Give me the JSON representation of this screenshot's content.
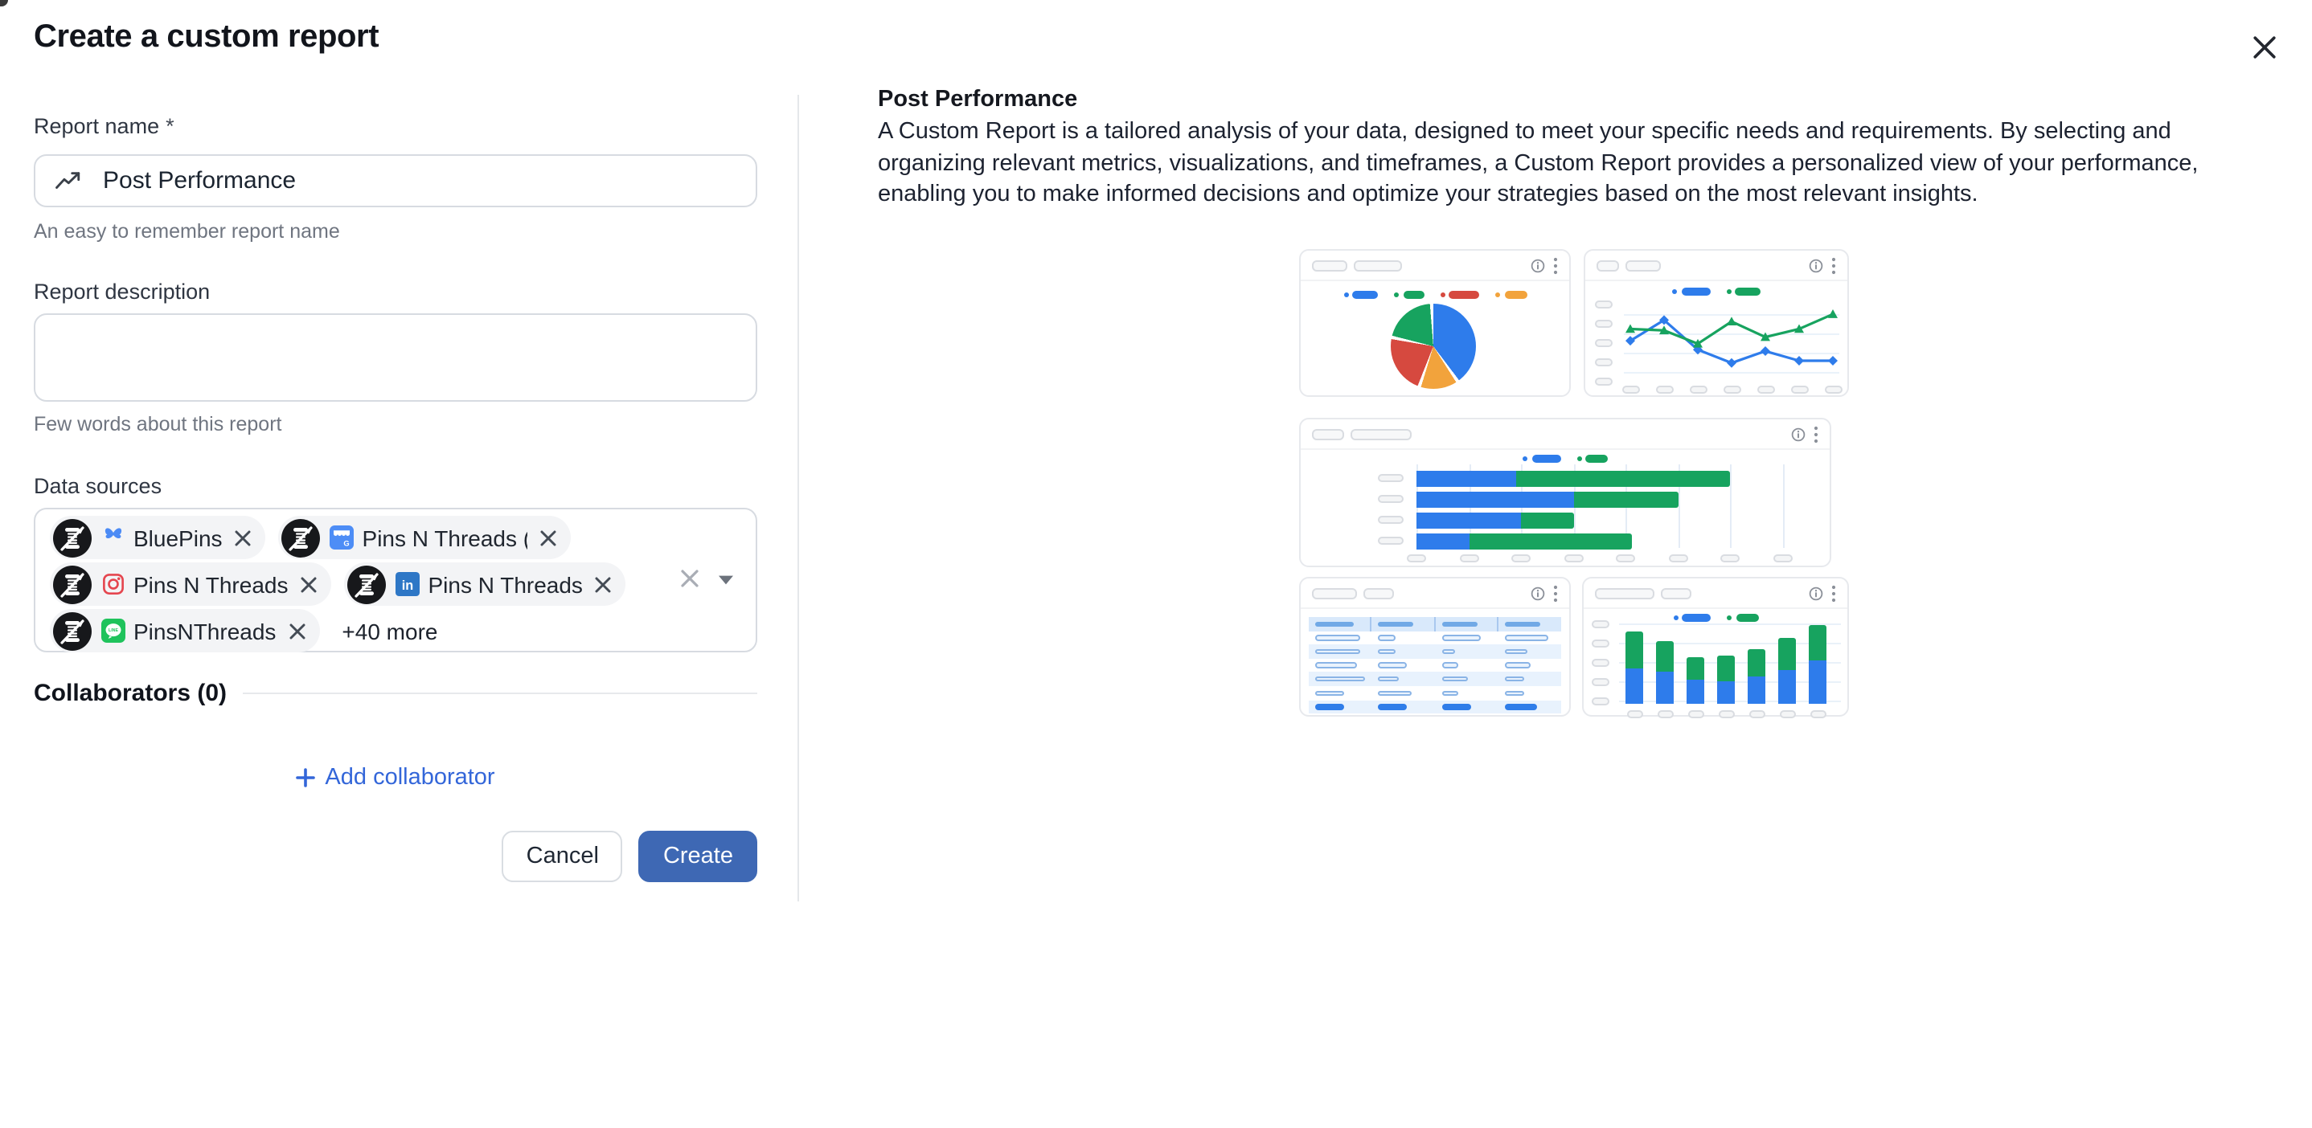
{
  "modal": {
    "title": "Create a custom report"
  },
  "form": {
    "report_name": {
      "label": "Report name",
      "required_mark": "*",
      "value": "Post Performance",
      "helper": "An easy to remember report name"
    },
    "report_description": {
      "label": "Report description",
      "value": "",
      "helper": "Few words about this report"
    },
    "data_sources": {
      "label": "Data sources",
      "tags": [
        {
          "name": "BluePins",
          "network": "bluesky"
        },
        {
          "name": "Pins N Threads (Sa",
          "network": "google-business"
        },
        {
          "name": "Pins N Threads",
          "network": "instagram"
        },
        {
          "name": "Pins N Threads",
          "network": "linkedin"
        },
        {
          "name": "PinsNThreads",
          "network": "line"
        }
      ],
      "more_label": "+40 more"
    },
    "collaborators": {
      "label": "Collaborators (0)",
      "add_label": "Add collaborator"
    },
    "buttons": {
      "cancel": "Cancel",
      "create": "Create"
    }
  },
  "preview": {
    "heading": "Post Performance",
    "description": "A Custom Report is a tailored analysis of your data, designed to meet your specific needs and requirements. By selecting and organizing relevant metrics, visualizations, and timeframes, a Custom Report provides a personalized view of your performance, enabling you to make informed decisions and optimize your strategies based on the most relevant insights."
  },
  "palette": {
    "accent_blue": "#3e68b4",
    "link_blue": "#3366d9",
    "chart_blue": "#2e7ceb",
    "chart_green": "#17a35f",
    "chart_red": "#d6493f",
    "chart_orange": "#f2a33c",
    "bluesky_blue": "#4c8bf5",
    "instagram_red": "#e5464f",
    "linkedin_blue": "#2e77c6",
    "line_green": "#1fc35c",
    "google_blue": "#4d8df6",
    "table_header_bg": "#d9e9fb",
    "table_alt_bg": "#e8f2fd",
    "table_solid_pill": "#2f7de9"
  },
  "chart_data": [
    {
      "type": "pie",
      "note": "thumbnail illustration; axis/labels are skeleton placeholders",
      "legend": [
        {
          "color": "#2e7ceb",
          "w": 16
        },
        {
          "color": "#17a35f",
          "w": 13
        },
        {
          "color": "#d6493f",
          "w": 19
        },
        {
          "color": "#f2a33c",
          "w": 14
        }
      ],
      "slices": [
        {
          "color": "#2e7ceb",
          "pct": 41
        },
        {
          "color": "#f2a33c",
          "pct": 15
        },
        {
          "color": "#d6493f",
          "pct": 23
        },
        {
          "color": "#17a35f",
          "pct": 21
        }
      ]
    },
    {
      "type": "line",
      "x_points": 7,
      "y_ticks": 5,
      "ylim": [
        0,
        100
      ],
      "legend": [
        {
          "color": "#2e7ceb",
          "w": 18
        },
        {
          "color": "#17a35f",
          "w": 16
        }
      ],
      "series": [
        {
          "name": "series-blue",
          "color": "#2e7ceb",
          "marker": "diamond",
          "values": [
            52,
            80,
            40,
            22,
            38,
            25,
            25
          ]
        },
        {
          "name": "series-green",
          "color": "#17a35f",
          "marker": "triangle",
          "values": [
            68,
            66,
            48,
            78,
            57,
            68,
            88
          ]
        }
      ]
    },
    {
      "type": "bar-horizontal-stacked",
      "categories": 4,
      "x_units": 7,
      "x_ticks": 8,
      "legend": [
        {
          "color": "#2e7ceb",
          "w": 18
        },
        {
          "color": "#17a35f",
          "w": 14
        }
      ],
      "series": [
        {
          "name": "series-blue",
          "color": "#2e7ceb",
          "values": [
            1.9,
            3,
            2,
            1
          ]
        },
        {
          "name": "series-green",
          "color": "#17a35f",
          "values": [
            4.1,
            2,
            1,
            3.1
          ]
        }
      ]
    },
    {
      "type": "table",
      "cols": 4,
      "rows": [
        {
          "kind": "header",
          "pills": [
            24,
            22,
            22,
            22
          ]
        },
        {
          "kind": "plain",
          "pills": [
            28,
            11,
            24,
            27
          ]
        },
        {
          "kind": "alt",
          "pills": [
            28,
            11,
            8,
            14
          ]
        },
        {
          "kind": "plain",
          "pills": [
            26,
            18,
            10,
            16
          ]
        },
        {
          "kind": "alt",
          "pills": [
            31,
            13,
            16,
            12
          ]
        },
        {
          "kind": "plain",
          "pills": [
            18,
            21,
            10,
            12
          ]
        },
        {
          "kind": "solid",
          "pills": [
            18,
            18,
            18,
            20
          ]
        }
      ]
    },
    {
      "type": "bar-vertical-stacked",
      "ylim": [
        0,
        100
      ],
      "y_ticks": 5,
      "legend": [
        {
          "color": "#2e7ceb",
          "w": 18
        },
        {
          "color": "#17a35f",
          "w": 14
        }
      ],
      "series": [
        {
          "name": "series-blue",
          "color": "#2e7ceb",
          "values": [
            43,
            38,
            28,
            27,
            32,
            40,
            52
          ]
        },
        {
          "name": "series-green",
          "color": "#17a35f",
          "values": [
            43,
            38,
            27,
            31,
            34,
            38,
            42
          ]
        }
      ]
    }
  ]
}
